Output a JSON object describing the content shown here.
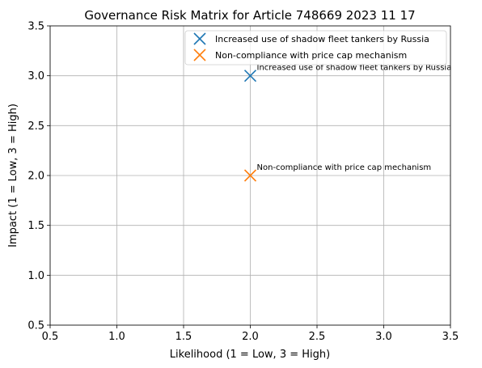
{
  "chart_data": {
    "type": "scatter",
    "title": "Governance Risk Matrix for Article 748669 2023 11 17",
    "xlabel": "Likelihood (1 = Low, 3 = High)",
    "ylabel": "Impact (1 = Low, 3 = High)",
    "xlim": [
      0.5,
      3.5
    ],
    "ylim": [
      0.5,
      3.5
    ],
    "xticks": [
      "0.5",
      "1.0",
      "1.5",
      "2.0",
      "2.5",
      "3.0",
      "3.5"
    ],
    "yticks": [
      "0.5",
      "1.0",
      "1.5",
      "2.0",
      "2.5",
      "3.0",
      "3.5"
    ],
    "grid": true,
    "legend_position": "top-right",
    "marker": "x",
    "series": [
      {
        "name": "Increased use of shadow fleet tankers by Russia",
        "color": "#1f77b4",
        "x": 2,
        "y": 3,
        "annotation": "Increased use of shadow fleet tankers by Russia"
      },
      {
        "name": "Non-compliance with price cap mechanism",
        "color": "#ff7f0e",
        "x": 2,
        "y": 2,
        "annotation": "Non-compliance with price cap mechanism"
      }
    ]
  }
}
